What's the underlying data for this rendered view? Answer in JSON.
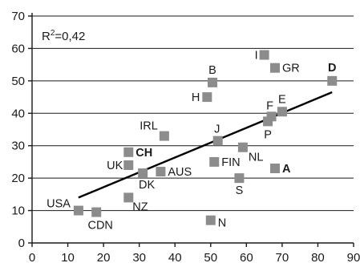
{
  "chart_data": {
    "type": "scatter",
    "xlim": [
      0,
      90
    ],
    "ylim": [
      0,
      70
    ],
    "x_ticks": [
      0,
      10,
      20,
      30,
      40,
      50,
      60,
      70,
      80,
      90
    ],
    "y_ticks": [
      0,
      10,
      20,
      30,
      40,
      50,
      60,
      70
    ],
    "grid": "horizontal",
    "annotation_r2": {
      "prefix": "R",
      "sup": "2",
      "value": "=0,42"
    },
    "trendline": {
      "x": [
        13,
        84
      ],
      "y": [
        14,
        46.5
      ]
    },
    "points": [
      {
        "label": "USA",
        "x": 13,
        "y": 10,
        "bold": false
      },
      {
        "label": "CDN",
        "x": 18,
        "y": 9.5,
        "bold": false
      },
      {
        "label": "NZ",
        "x": 27,
        "y": 14,
        "bold": false
      },
      {
        "label": "UK",
        "x": 27,
        "y": 24,
        "bold": false
      },
      {
        "label": "CH",
        "x": 27,
        "y": 28,
        "bold": true
      },
      {
        "label": "DK",
        "x": 31,
        "y": 21.5,
        "bold": false
      },
      {
        "label": "AUS",
        "x": 36,
        "y": 22,
        "bold": false
      },
      {
        "label": "IRL",
        "x": 37,
        "y": 33,
        "bold": false
      },
      {
        "label": "H",
        "x": 49,
        "y": 45,
        "bold": false
      },
      {
        "label": "B",
        "x": 50.5,
        "y": 49.5,
        "bold": false
      },
      {
        "label": "N",
        "x": 50,
        "y": 7,
        "bold": false
      },
      {
        "label": "FIN",
        "x": 51,
        "y": 25,
        "bold": false
      },
      {
        "label": "J",
        "x": 52,
        "y": 31.5,
        "bold": false
      },
      {
        "label": "S",
        "x": 58,
        "y": 20,
        "bold": false
      },
      {
        "label": "NL",
        "x": 59,
        "y": 29.5,
        "bold": false
      },
      {
        "label": "I",
        "x": 65,
        "y": 58,
        "bold": false
      },
      {
        "label": "P",
        "x": 66,
        "y": 37.5,
        "bold": false
      },
      {
        "label": "F",
        "x": 67,
        "y": 39,
        "bold": false
      },
      {
        "label": "GR",
        "x": 68,
        "y": 54,
        "bold": false
      },
      {
        "label": "A",
        "x": 68,
        "y": 23,
        "bold": true
      },
      {
        "label": "E",
        "x": 70,
        "y": 40.5,
        "bold": false
      },
      {
        "label": "D",
        "x": 84,
        "y": 50,
        "bold": true
      }
    ]
  },
  "colors": {
    "marker": "#8c8c8c",
    "line": "#000000",
    "text": "#1a1a1a",
    "background": "#ffffff"
  }
}
